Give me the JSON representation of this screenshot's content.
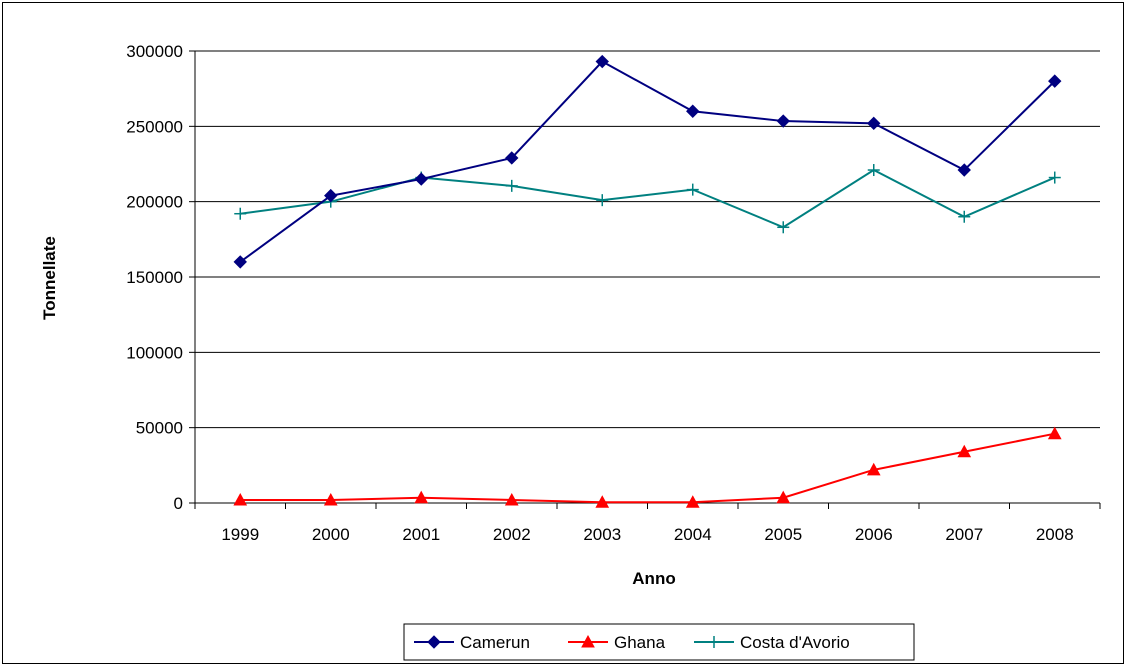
{
  "chart_data": {
    "type": "line",
    "title": "",
    "xlabel": "Anno",
    "ylabel": "Tonnellate",
    "categories": [
      "1999",
      "2000",
      "2001",
      "2002",
      "2003",
      "2004",
      "2005",
      "2006",
      "2007",
      "2008"
    ],
    "ylim": [
      0,
      300000
    ],
    "yticks": [
      0,
      50000,
      100000,
      150000,
      200000,
      250000,
      300000
    ],
    "grid": "horizontal",
    "legend_position": "bottom",
    "series": [
      {
        "name": "Camerun",
        "color": "#000080",
        "marker": "diamond",
        "values": [
          160000,
          204000,
          215000,
          229000,
          293000,
          260000,
          253500,
          252000,
          221000,
          280000
        ]
      },
      {
        "name": "Ghana",
        "color": "#ff0000",
        "marker": "triangle",
        "values": [
          2000,
          2000,
          3500,
          2000,
          500,
          500,
          3500,
          22000,
          34000,
          46000
        ]
      },
      {
        "name": "Costa d'Avorio",
        "color": "#008080",
        "marker": "plus",
        "values": [
          192000,
          200000,
          216000,
          210500,
          201000,
          208000,
          183000,
          221000,
          190000,
          216000
        ]
      }
    ]
  }
}
